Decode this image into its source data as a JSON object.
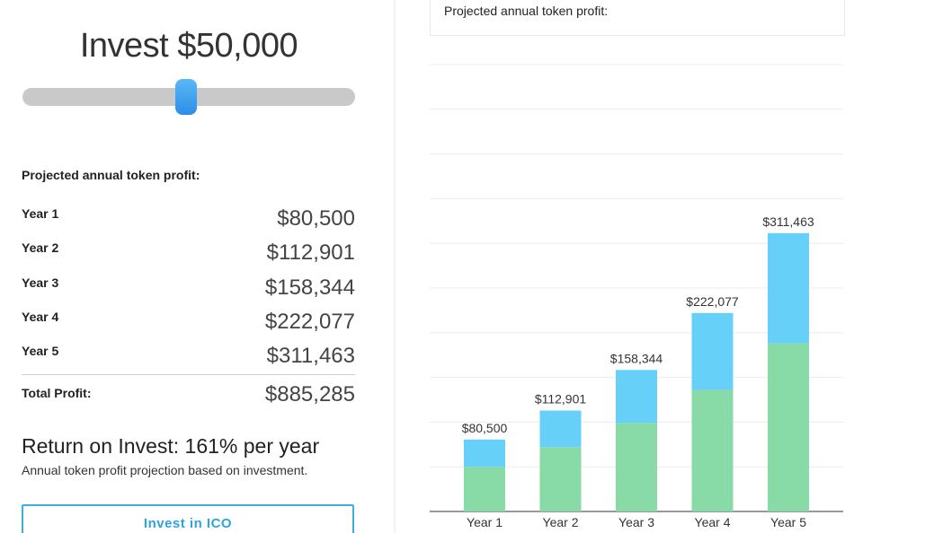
{
  "calculator": {
    "invest_title": "Invest $50,000",
    "slider_value": 0.49,
    "section_heading": "Projected annual token profit:",
    "years": [
      {
        "label": "Year 1",
        "value": "$80,500"
      },
      {
        "label": "Year 2",
        "value": "$112,901"
      },
      {
        "label": "Year 3",
        "value": "$158,344"
      },
      {
        "label": "Year 4",
        "value": "$222,077"
      },
      {
        "label": "Year 5",
        "value": "$311,463"
      }
    ],
    "total_label": "Total Profit:",
    "total_value": "$885,285",
    "roi_title": "Return on Invest: 161% per year",
    "roi_subtitle": "Annual token profit projection based on investment.",
    "invest_button": "Invest in ICO"
  },
  "chart_header": "Projected annual token profit:",
  "colors": {
    "bar_base": "#88dba6",
    "bar_top": "#66d0f8",
    "accent": "#3bb0e0",
    "slider_thumb": "#2c8ee8"
  },
  "chart_data": {
    "type": "bar",
    "stacked": true,
    "categories": [
      "Year 1",
      "Year 2",
      "Year 3",
      "Year 4",
      "Year 5"
    ],
    "series": [
      {
        "values": [
          50000,
          72000,
          99000,
          136000,
          188000
        ]
      },
      {
        "values": [
          30500,
          40901,
          59344,
          86077,
          123463
        ]
      }
    ],
    "data_labels": [
      "$80,500",
      "$112,901",
      "$158,344",
      "$222,077",
      "$311,463"
    ],
    "ylim": [
      0,
      500000
    ],
    "grid": true,
    "legend": "none"
  }
}
